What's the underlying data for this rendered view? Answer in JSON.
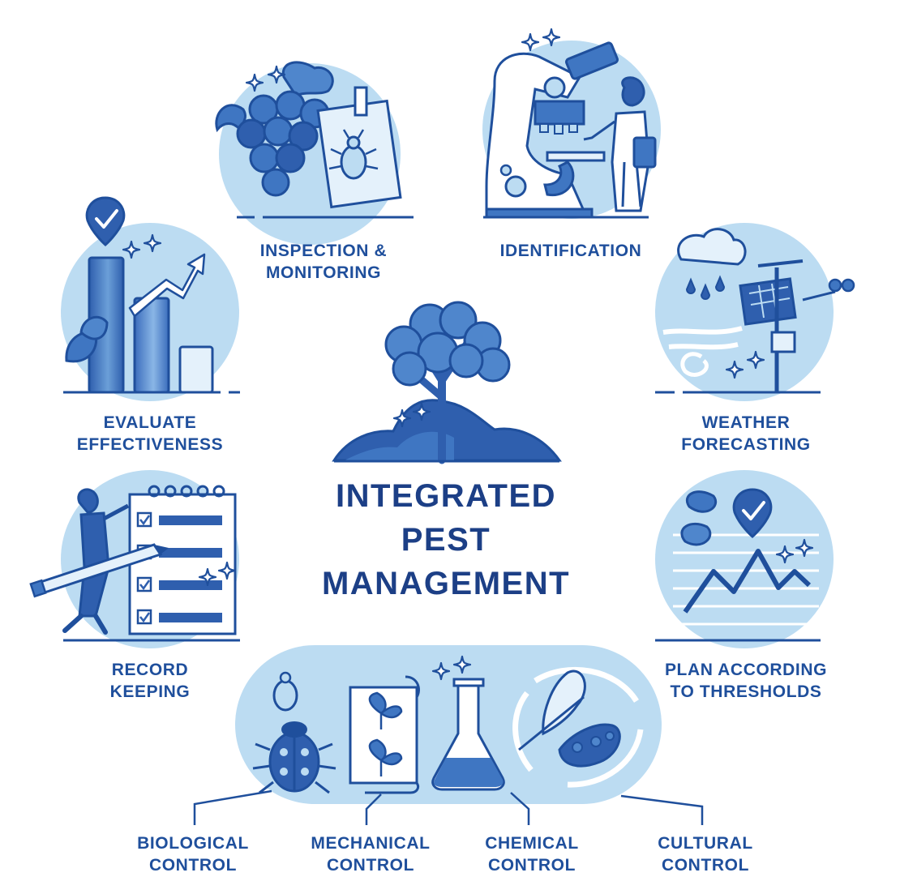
{
  "title": {
    "line1": "INTEGRATED",
    "line2": "PEST",
    "line3": "MANAGEMENT"
  },
  "steps": {
    "inspection": {
      "line1": "INSPECTION &",
      "line2": "MONITORING"
    },
    "identification": {
      "line1": "IDENTIFICATION"
    },
    "weather": {
      "line1": "WEATHER",
      "line2": "FORECASTING"
    },
    "thresholds": {
      "line1": "PLAN ACCORDING",
      "line2": "TO THRESHOLDS"
    },
    "evaluate": {
      "line1": "EVALUATE",
      "line2": "EFFECTIVENESS"
    },
    "records": {
      "line1": "RECORD",
      "line2": "KEEPING"
    },
    "biological": {
      "line1": "BIOLOGICAL",
      "line2": "CONTROL"
    },
    "mechanical": {
      "line1": "MECHANICAL",
      "line2": "CONTROL"
    },
    "chemical": {
      "line1": "CHEMICAL",
      "line2": "CONTROL"
    },
    "cultural": {
      "line1": "CULTURAL",
      "line2": "CONTROL"
    }
  },
  "colors": {
    "circle_fill": "#bcdcf2",
    "dark_blue": "#1f4f9c",
    "mid_blue": "#3f76c2",
    "light_blue": "#e4f1fb"
  },
  "icons": [
    "grapes-icon",
    "magnifier-bug-icon",
    "microscope-icon",
    "scientist-icon",
    "weather-station-icon",
    "threshold-chart-icon",
    "bar-chart-icon",
    "checklist-icon",
    "tree-icon",
    "ladybug-icon",
    "leaf-scroll-icon",
    "flask-icon",
    "crop-rotation-icon"
  ]
}
